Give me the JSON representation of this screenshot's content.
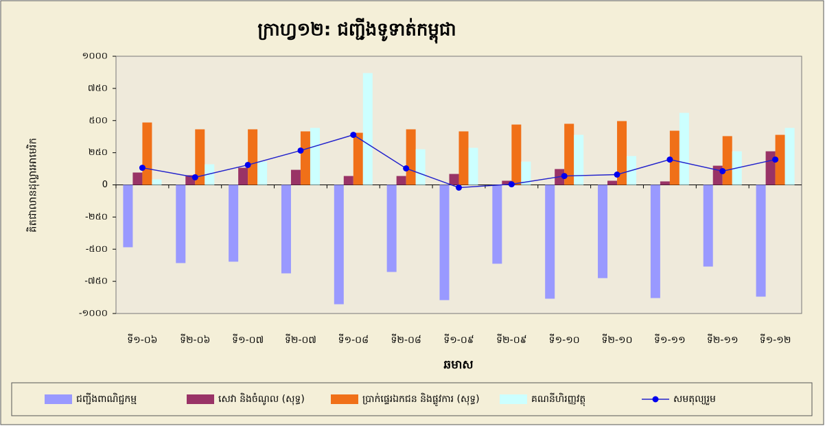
{
  "chart_data": {
    "type": "bar",
    "title": "ក្រាហ្វ១២: ជញ្ជីងទូទាត់កម្ពុជា",
    "x_label": "ឆមាស",
    "y_label": "គិតជាលានដុល្លារអាមេរិក",
    "categories": [
      "ទី១-០៦",
      "ទី២-០៦",
      "ទី១-០៧",
      "ទី២-០៧",
      "ទី១-០៨",
      "ទី២-០៨",
      "ទី១-០៩",
      "ទី២-០៩",
      "ទី១-១០",
      "ទី២-១០",
      "ទី១-១១",
      "ទី២-១១",
      "ទី១-១២"
    ],
    "series": [
      {
        "name": "ជញ្ជីងពាណិជ្ជកម្ម",
        "color": "#9999ff",
        "values": [
          -485,
          -608,
          -597,
          -688,
          -928,
          -677,
          -896,
          -613,
          -885,
          -725,
          -880,
          -635,
          -869
        ]
      },
      {
        "name": "សេវា និងចំណូល (សុទ្ធ)",
        "color": "#993366",
        "values": [
          96,
          75,
          133,
          117,
          69,
          69,
          85,
          32,
          123,
          32,
          27,
          149,
          261
        ]
      },
      {
        "name": "ប្រាក់ផ្ទេរឯកជន និងផ្លូវការ (សុទ្ធ)",
        "color": "#f07018",
        "values": [
          485,
          432,
          432,
          416,
          405,
          432,
          416,
          469,
          475,
          496,
          421,
          379,
          389
        ]
      },
      {
        "name": "គណនីហិរញ្ញវត្ថុ",
        "color": "#ccffff",
        "values": [
          43,
          160,
          181,
          443,
          869,
          277,
          288,
          181,
          389,
          224,
          560,
          261,
          443
        ]
      },
      {
        "name": "សមតុល្យរួម",
        "color": "#2222cc",
        "type": "line",
        "values": [
          133,
          59,
          155,
          267,
          389,
          128,
          -21,
          5,
          69,
          80,
          197,
          107,
          197
        ]
      }
    ],
    "ylim": [
      -1000,
      1000
    ],
    "yticks": [
      {
        "value": 1000,
        "label": "១០០០"
      },
      {
        "value": 750,
        "label": "៧៥០"
      },
      {
        "value": 500,
        "label": "៥០០"
      },
      {
        "value": 250,
        "label": "២៥០"
      },
      0,
      {
        "value": -250,
        "label": "-២៥០"
      },
      {
        "value": -500,
        "label": "-៥០០"
      },
      {
        "value": -750,
        "label": "-៧៥០"
      },
      {
        "value": -1000,
        "label": "-១០០០"
      }
    ],
    "legend": "bottom"
  }
}
